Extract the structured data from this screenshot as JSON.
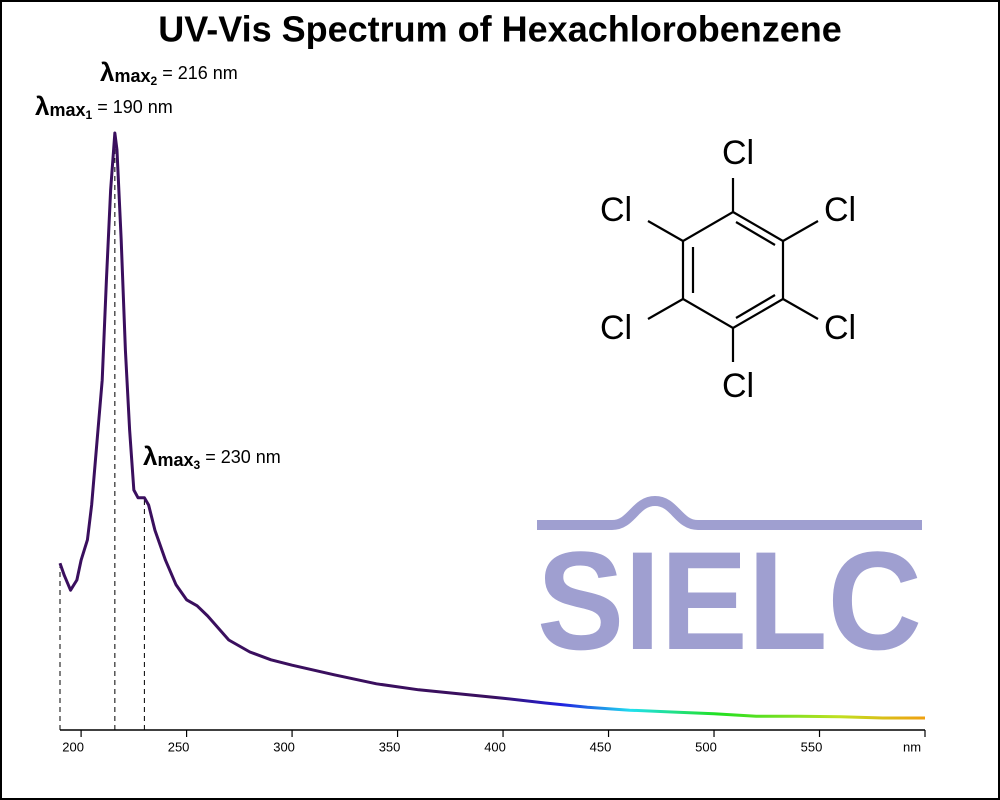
{
  "chart_data": {
    "type": "line",
    "title": "UV-Vis Spectrum of Hexachlorobenzene",
    "xlim": [
      190,
      600
    ],
    "xticks": [
      200,
      250,
      300,
      350,
      400,
      450,
      500,
      550,
      {
        "value": 600,
        "label": "nm"
      }
    ],
    "ylim": [
      0,
      1
    ],
    "series": [
      {
        "color": "#3a0f5e",
        "x": [
          190,
          192,
          195,
          198,
          200,
          203,
          205,
          208,
          210,
          212,
          214,
          216,
          217,
          219,
          221,
          223,
          225,
          227,
          230,
          232,
          235,
          240,
          245,
          250,
          255,
          260,
          270,
          280,
          290,
          300,
          320,
          340,
          360,
          380,
          400,
          420,
          440,
          460,
          480,
          500,
          520,
          540,
          560,
          580,
          600
        ],
        "values": [
          0.278,
          0.258,
          0.233,
          0.25,
          0.283,
          0.317,
          0.375,
          0.5,
          0.583,
          0.75,
          0.9,
          0.995,
          0.967,
          0.817,
          0.633,
          0.5,
          0.4,
          0.387,
          0.387,
          0.375,
          0.333,
          0.283,
          0.242,
          0.217,
          0.207,
          0.19,
          0.15,
          0.13,
          0.117,
          0.108,
          0.092,
          0.077,
          0.067,
          0.06,
          0.053,
          0.045,
          0.038,
          0.033,
          0.03,
          0.027,
          0.023,
          0.023,
          0.022,
          0.02,
          0.02
        ]
      }
    ],
    "annotations": [
      {
        "symbol": "λ",
        "sub": "max",
        "index": "1",
        "text": "= 190 nm",
        "x": 190
      },
      {
        "symbol": "λ",
        "sub": "max",
        "index": "2",
        "text": "= 216 nm",
        "x": 216
      },
      {
        "symbol": "λ",
        "sub": "max",
        "index": "3",
        "text": "= 230 nm",
        "x": 230
      }
    ]
  },
  "structure": {
    "atoms": [
      "Cl",
      "Cl",
      "Cl",
      "Cl",
      "Cl",
      "Cl"
    ]
  },
  "logo": "SIELC"
}
